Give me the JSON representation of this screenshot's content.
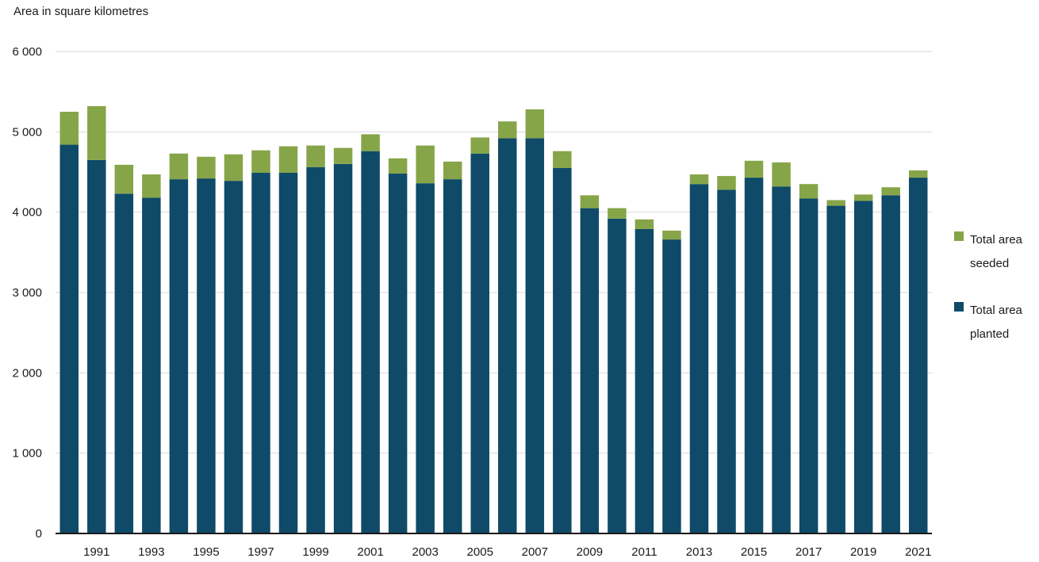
{
  "chart_data": {
    "type": "bar",
    "stacked": true,
    "ylabel": "Area in square kilometres",
    "ylim": [
      0,
      6000
    ],
    "yticks": [
      0,
      1000,
      2000,
      3000,
      4000,
      5000,
      6000
    ],
    "ytick_labels": [
      "0",
      "1 000",
      "2 000",
      "3 000",
      "4 000",
      "5 000",
      "6 000"
    ],
    "grid": true,
    "legend_position": "right",
    "categories": [
      "1990",
      "1991",
      "1992",
      "1993",
      "1994",
      "1995",
      "1996",
      "1997",
      "1998",
      "1999",
      "2000",
      "2001",
      "2002",
      "2003",
      "2004",
      "2005",
      "2006",
      "2007",
      "2008",
      "2009",
      "2010",
      "2011",
      "2012",
      "2013",
      "2014",
      "2015",
      "2016",
      "2017",
      "2018",
      "2019",
      "2020",
      "2021"
    ],
    "xtick_labels": [
      "1991",
      "1993",
      "1995",
      "1997",
      "1999",
      "2001",
      "2003",
      "2005",
      "2007",
      "2009",
      "2011",
      "2013",
      "2015",
      "2017",
      "2019",
      "2021"
    ],
    "series": [
      {
        "name": "Total area planted",
        "color": "#0f4a68",
        "values": [
          4840,
          4650,
          4230,
          4180,
          4410,
          4420,
          4390,
          4490,
          4490,
          4560,
          4600,
          4760,
          4480,
          4360,
          4410,
          4730,
          4920,
          4920,
          4550,
          4050,
          3920,
          3790,
          3660,
          4350,
          4280,
          4430,
          4320,
          4170,
          4080,
          4140,
          4210,
          4430
        ]
      },
      {
        "name": "Total area seeded",
        "color": "#86a548",
        "values": [
          410,
          670,
          360,
          290,
          320,
          270,
          330,
          280,
          330,
          270,
          200,
          210,
          190,
          470,
          220,
          200,
          210,
          360,
          210,
          160,
          130,
          120,
          110,
          120,
          170,
          210,
          300,
          180,
          70,
          80,
          100,
          90
        ]
      }
    ]
  },
  "legend": {
    "items": [
      {
        "label": "Total area\nseeded",
        "color": "#86a548"
      },
      {
        "label": "Total area\nplanted",
        "color": "#0f4a68"
      }
    ]
  }
}
